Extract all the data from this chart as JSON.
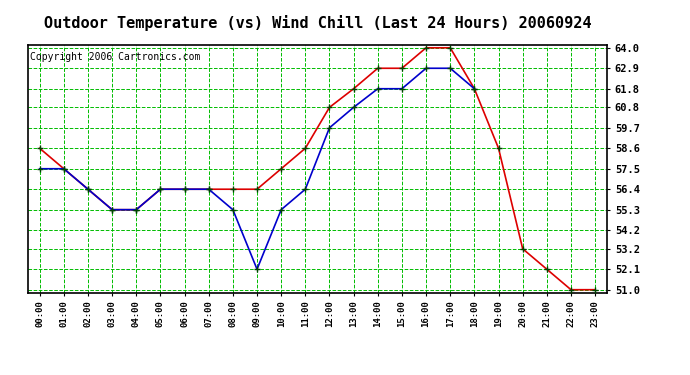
{
  "title": "Outdoor Temperature (vs) Wind Chill (Last 24 Hours) 20060924",
  "copyright": "Copyright 2006 Cartronics.com",
  "hours": [
    "00:00",
    "01:00",
    "02:00",
    "03:00",
    "04:00",
    "05:00",
    "06:00",
    "07:00",
    "08:00",
    "09:00",
    "10:00",
    "11:00",
    "12:00",
    "13:00",
    "14:00",
    "15:00",
    "16:00",
    "17:00",
    "18:00",
    "19:00",
    "20:00",
    "21:00",
    "22:00",
    "23:00"
  ],
  "temp": [
    58.6,
    57.5,
    56.4,
    55.3,
    55.3,
    56.4,
    56.4,
    56.4,
    56.4,
    56.4,
    57.5,
    58.6,
    60.8,
    61.8,
    62.9,
    62.9,
    64.0,
    64.0,
    61.8,
    58.6,
    53.2,
    52.1,
    51.0,
    51.0
  ],
  "wind_chill": [
    57.5,
    57.5,
    56.4,
    55.3,
    55.3,
    56.4,
    56.4,
    56.4,
    55.3,
    52.1,
    55.3,
    56.4,
    59.7,
    60.8,
    61.8,
    61.8,
    62.9,
    62.9,
    61.8,
    null,
    null,
    null,
    null,
    null
  ],
  "temp_color": "#dd0000",
  "wind_chill_color": "#0000cc",
  "bg_color": "#ffffff",
  "grid_color": "#00bb00",
  "plot_bg": "#ffffff",
  "ymin": 51.0,
  "ymax": 64.0,
  "yticks": [
    51.0,
    52.1,
    53.2,
    54.2,
    55.3,
    56.4,
    57.5,
    58.6,
    59.7,
    60.8,
    61.8,
    62.9,
    64.0
  ],
  "title_fontsize": 11,
  "copyright_fontsize": 7,
  "marker_color": "#004400"
}
